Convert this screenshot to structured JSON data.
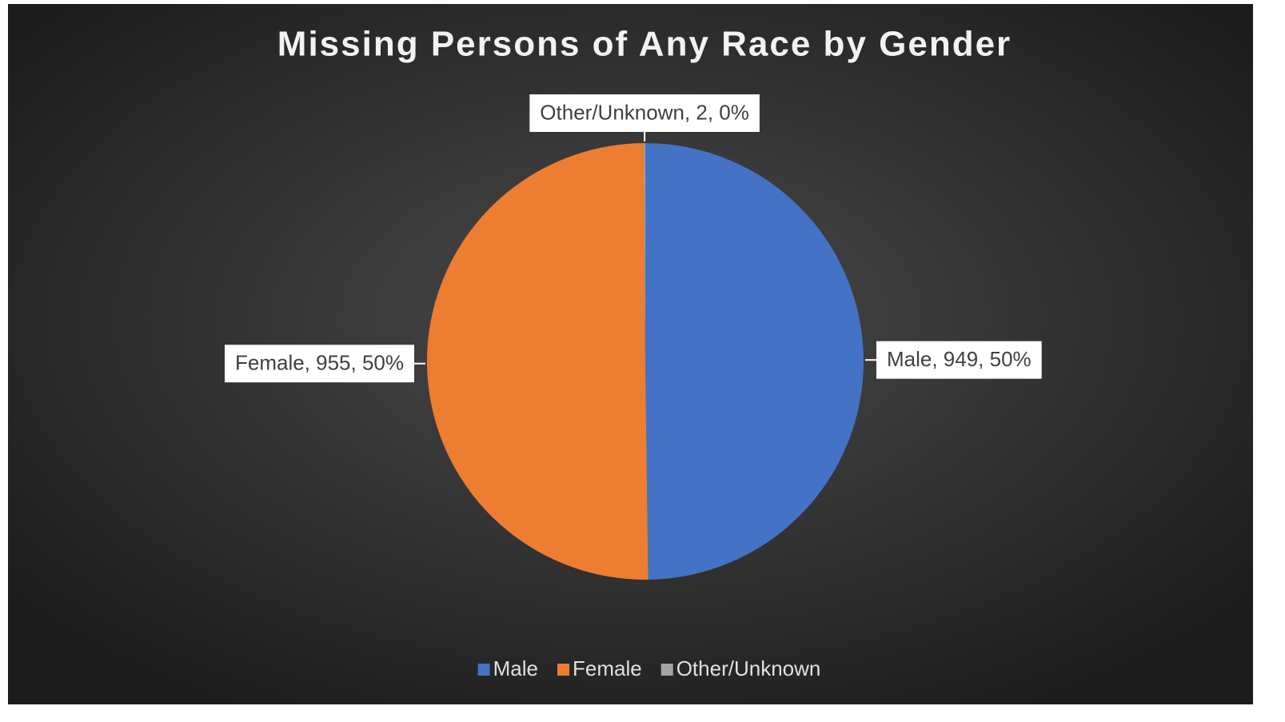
{
  "chart_data": {
    "type": "pie",
    "title": "Missing Persons of Any Race by Gender",
    "categories": [
      "Male",
      "Female",
      "Other/Unknown"
    ],
    "values": [
      949,
      955,
      2
    ],
    "value_labels": [
      "Male, 949, 50%",
      "Female, 955, 50%",
      "Other/Unknown, 2, 0%"
    ],
    "colors": [
      "#4472c4",
      "#ed7d31",
      "#a5a5a5"
    ],
    "legend": "bottom"
  }
}
